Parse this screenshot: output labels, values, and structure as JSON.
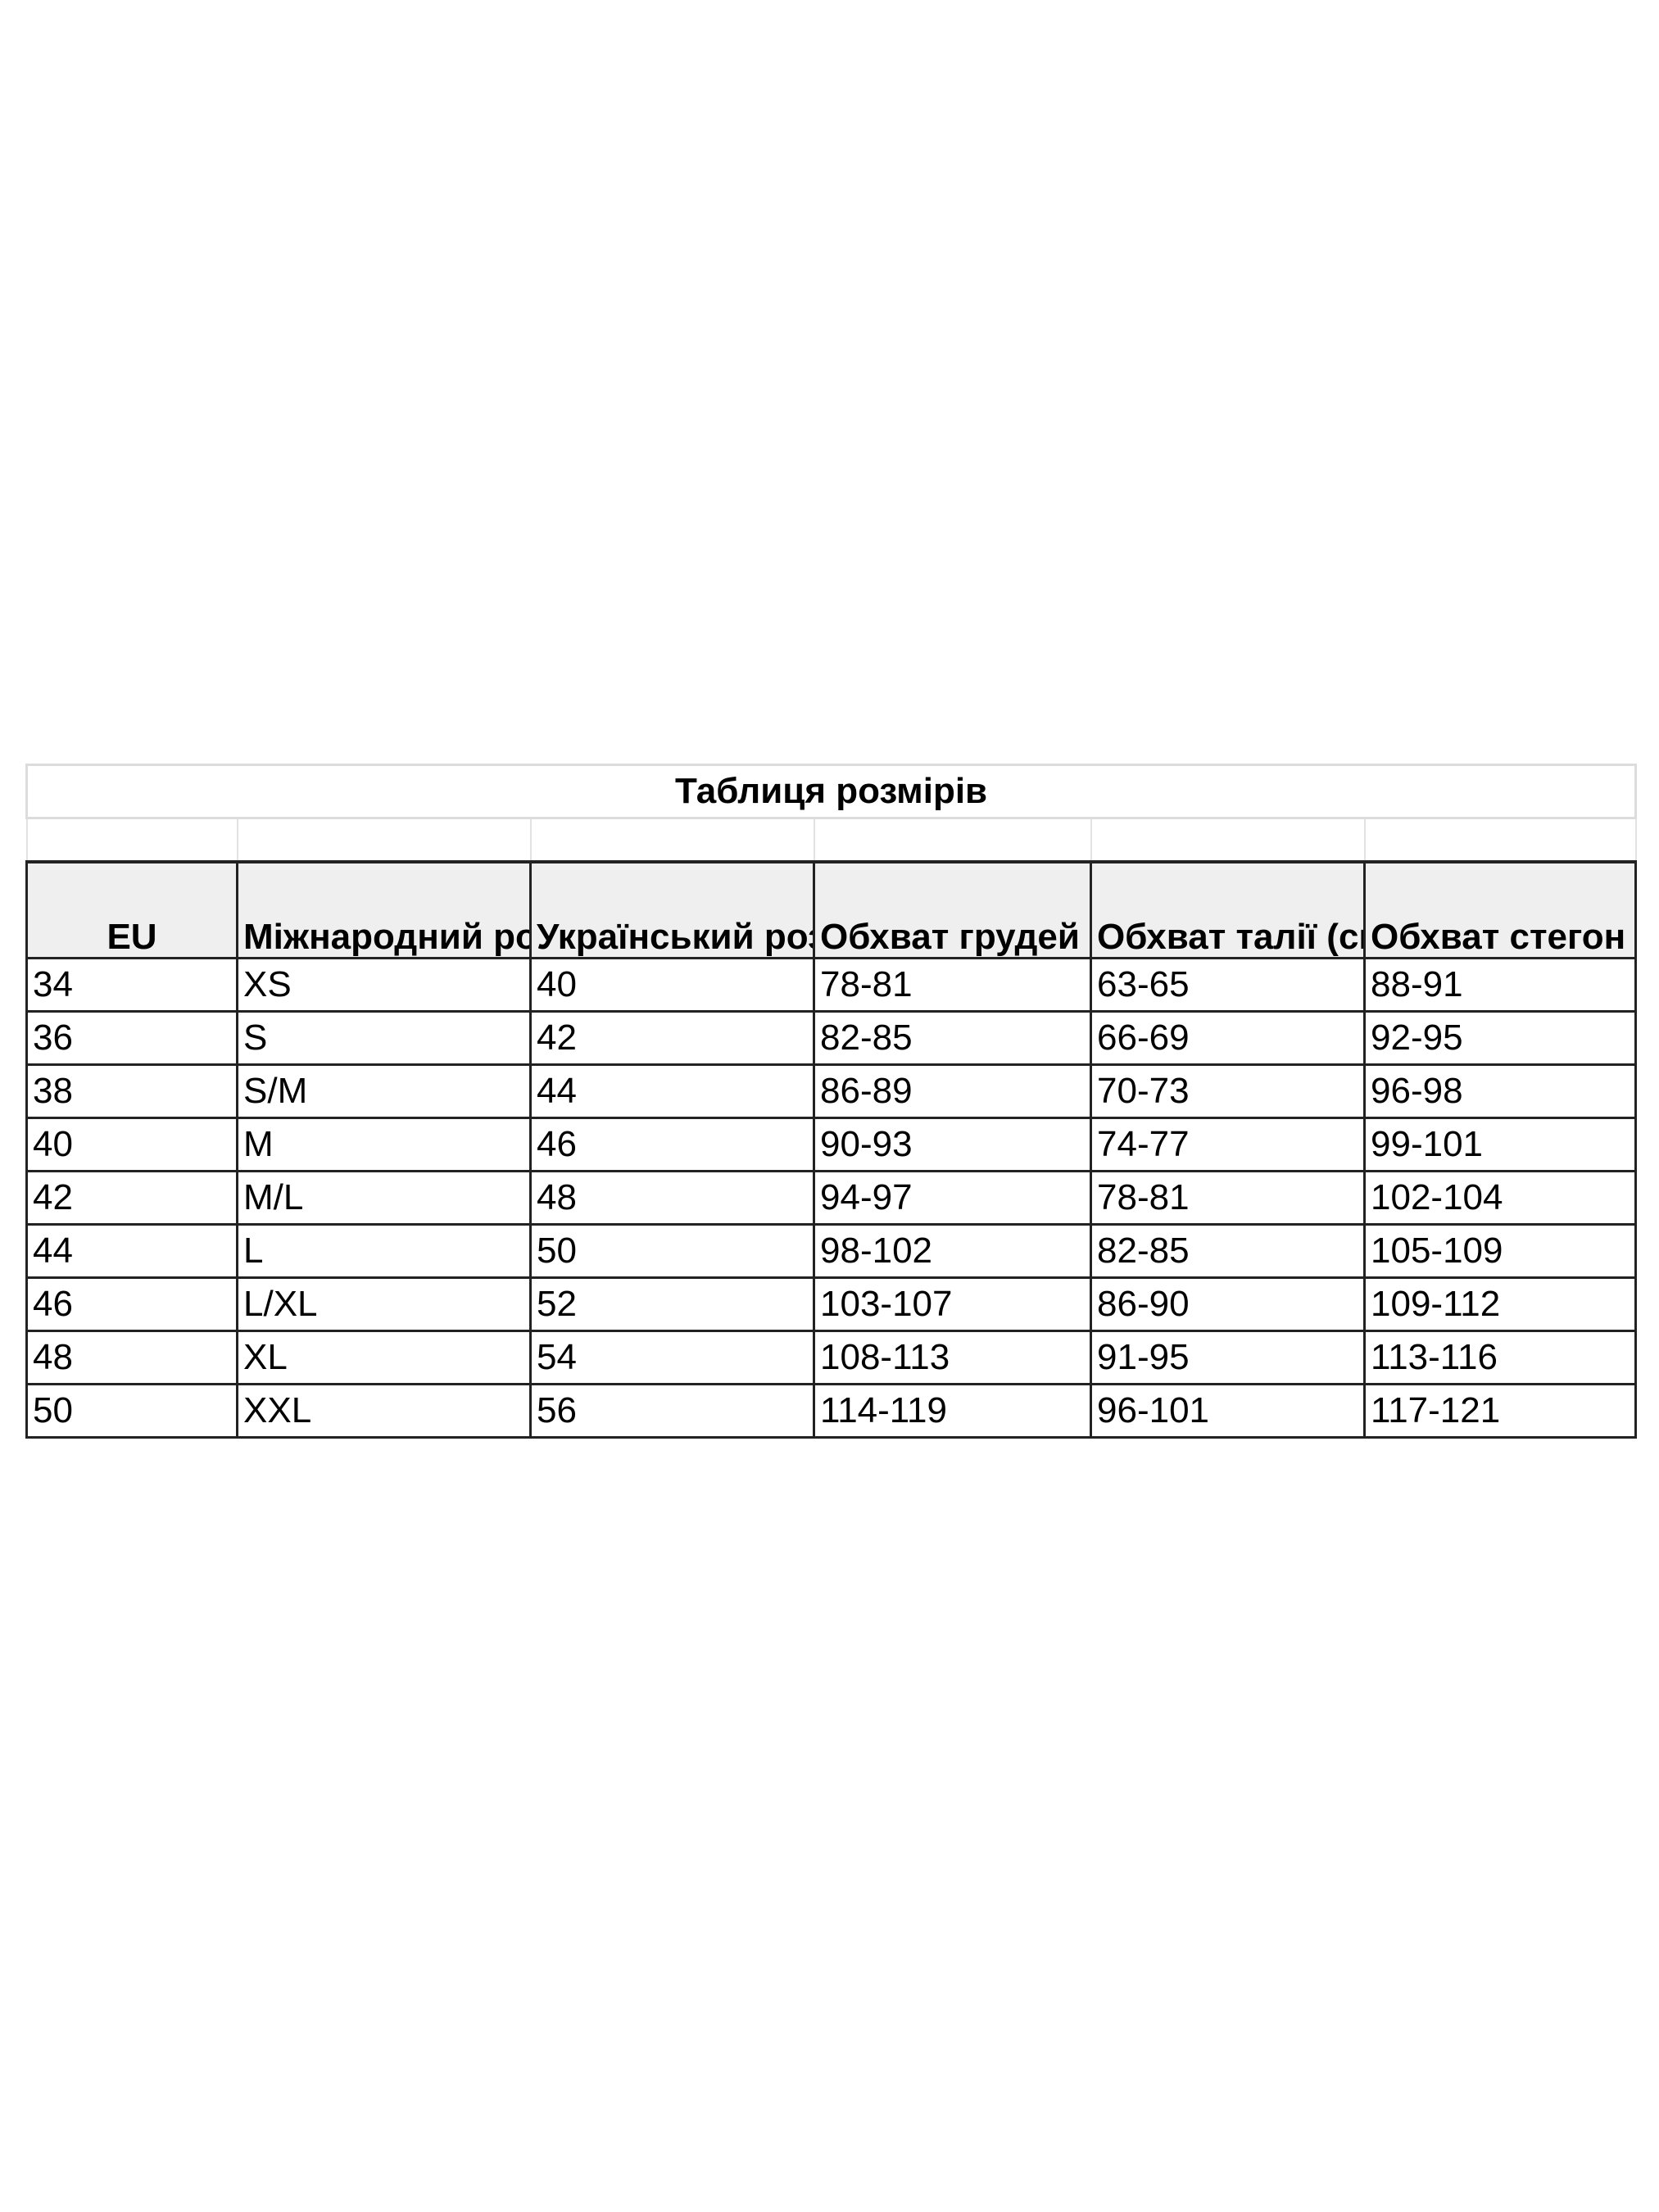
{
  "title": "Таблиця розмірів",
  "colors": {
    "header_bg": "#efefef",
    "border": "#222222"
  },
  "headers": [
    "EU",
    "Міжнародний розмір",
    "Український розмір",
    "Обхват грудей (см)",
    "Обхват талії (см)",
    "Обхват стегон (см)"
  ],
  "rows": [
    [
      "34",
      "XS",
      "40",
      "78-81",
      "63-65",
      "88-91"
    ],
    [
      "36",
      "S",
      "42",
      "82-85",
      "66-69",
      "92-95"
    ],
    [
      "38",
      "S/M",
      "44",
      "86-89",
      "70-73",
      "96-98"
    ],
    [
      "40",
      "M",
      "46",
      "90-93",
      "74-77",
      "99-101"
    ],
    [
      "42",
      "M/L",
      "48",
      "94-97",
      "78-81",
      "102-104"
    ],
    [
      "44",
      "L",
      "50",
      "98-102",
      "82-85",
      "105-109"
    ],
    [
      "46",
      "L/XL",
      "52",
      "103-107",
      "86-90",
      "109-112"
    ],
    [
      "48",
      "XL",
      "54",
      "108-113",
      "91-95",
      "113-116"
    ],
    [
      "50",
      "XXL",
      "56",
      "114-119",
      "96-101",
      "117-121"
    ]
  ]
}
